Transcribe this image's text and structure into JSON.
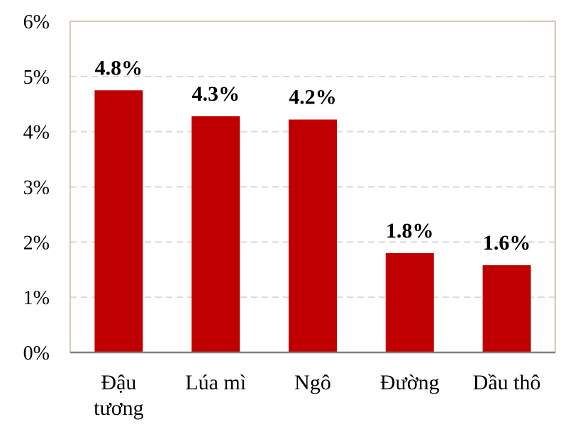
{
  "chart_data": {
    "type": "bar",
    "categories": [
      [
        "Đậu",
        "tương"
      ],
      [
        "Lúa mì"
      ],
      [
        "Ngô"
      ],
      [
        "Đường"
      ],
      [
        "Dầu thô"
      ]
    ],
    "values": [
      4.75,
      4.28,
      4.22,
      1.8,
      1.58
    ],
    "data_labels": [
      "4.8%",
      "4.3%",
      "4.2%",
      "1.8%",
      "1.6%"
    ],
    "y_ticks": [
      0,
      1,
      2,
      3,
      4,
      5,
      6
    ],
    "y_tick_labels": [
      "0%",
      "1%",
      "2%",
      "3%",
      "4%",
      "5%",
      "6%"
    ],
    "ylim": [
      0,
      6
    ],
    "grid": true,
    "legend": "none",
    "colors": {
      "bar": "#C00000",
      "grid": "#D9D9D9",
      "frame": "#C9B79C",
      "axis": "#808080"
    }
  }
}
